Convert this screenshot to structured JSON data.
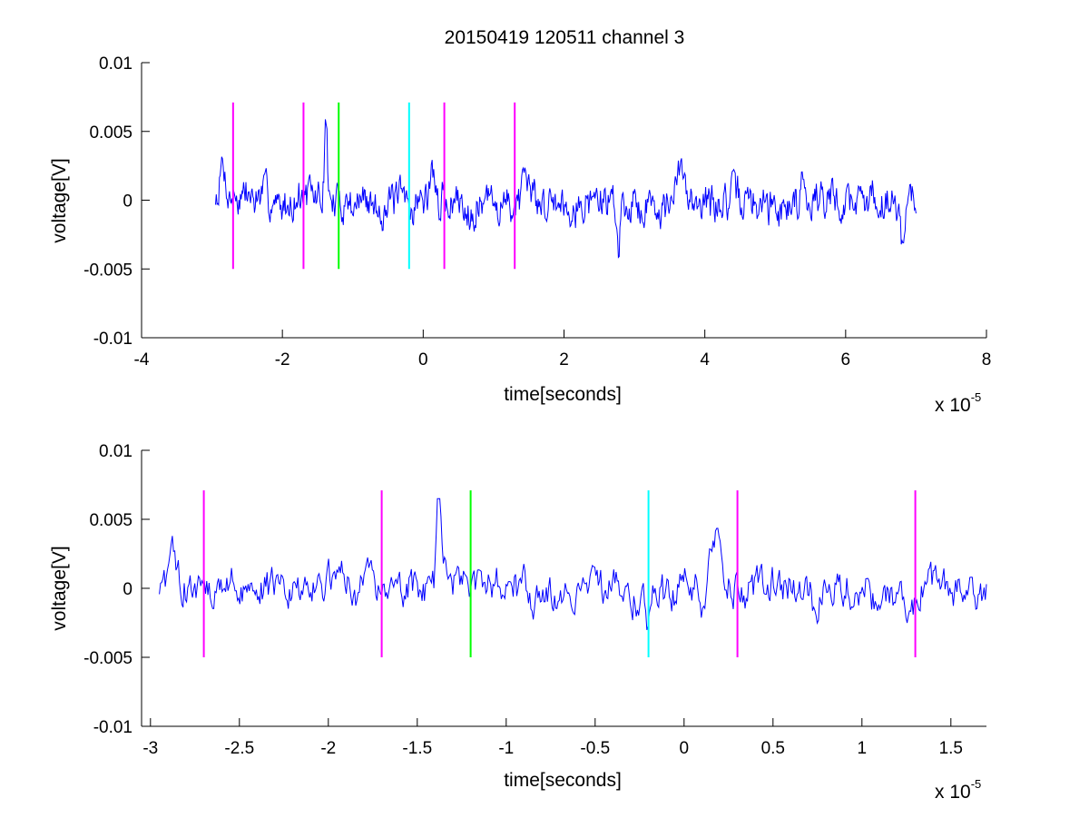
{
  "figure": {
    "title": "20150419 120511 channel 3"
  },
  "chart_data": [
    {
      "type": "line",
      "xlabel": "time[seconds]",
      "ylabel": "voltage[V]",
      "xlim": [
        -4,
        8
      ],
      "ylim": [
        -0.01,
        0.01
      ],
      "x_ticks": [
        -4,
        -2,
        0,
        2,
        4,
        6,
        8
      ],
      "x_tick_labels": [
        "-4",
        "-2",
        "0",
        "2",
        "4",
        "6",
        "8"
      ],
      "y_ticks": [
        0.01,
        0.005,
        0,
        -0.005,
        -0.01
      ],
      "y_tick_labels": [
        "0.01",
        "0.005",
        "0",
        "-0.005",
        "-0.01"
      ],
      "x_multiplier": {
        "base": "x 10",
        "exponent": "-5"
      },
      "grid": false,
      "series": [
        {
          "color": "#0000ff",
          "x_range": [
            -2.95,
            7.0
          ],
          "amplitude_range": [
            -0.0046,
            0.0065
          ]
        }
      ],
      "markers": [
        {
          "x": -2.7,
          "color": "#ff00ff",
          "y_range": [
            -0.005,
            0.0071
          ]
        },
        {
          "x": -1.7,
          "color": "#ff00ff",
          "y_range": [
            -0.005,
            0.0071
          ]
        },
        {
          "x": -1.2,
          "color": "#00ff00",
          "y_range": [
            -0.005,
            0.0071
          ]
        },
        {
          "x": -0.2,
          "color": "#00ffff",
          "y_range": [
            -0.005,
            0.0071
          ]
        },
        {
          "x": 0.3,
          "color": "#ff00ff",
          "y_range": [
            -0.005,
            0.0071
          ]
        },
        {
          "x": 1.3,
          "color": "#ff00ff",
          "y_range": [
            -0.005,
            0.0071
          ]
        }
      ]
    },
    {
      "type": "line",
      "xlabel": "time[seconds]",
      "ylabel": "voltage[V]",
      "xlim": [
        -3.05,
        1.7
      ],
      "ylim": [
        -0.01,
        0.01
      ],
      "x_ticks": [
        -3,
        -2.5,
        -2,
        -1.5,
        -1,
        -0.5,
        0,
        0.5,
        1,
        1.5
      ],
      "x_tick_labels": [
        "-3",
        "-2.5",
        "-2",
        "-1.5",
        "-1",
        "-0.5",
        "0",
        "0.5",
        "1",
        "1.5"
      ],
      "y_ticks": [
        0.01,
        0.005,
        0,
        -0.005,
        -0.01
      ],
      "y_tick_labels": [
        "0.01",
        "0.005",
        "0",
        "-0.005",
        "-0.01"
      ],
      "x_multiplier": {
        "base": "x 10",
        "exponent": "-5"
      },
      "grid": false,
      "series": [
        {
          "color": "#0000ff",
          "x_range": [
            -2.95,
            1.7
          ],
          "amplitude_range": [
            -0.0035,
            0.0065
          ]
        }
      ],
      "markers": [
        {
          "x": -2.7,
          "color": "#ff00ff",
          "y_range": [
            -0.005,
            0.0071
          ]
        },
        {
          "x": -1.7,
          "color": "#ff00ff",
          "y_range": [
            -0.005,
            0.0071
          ]
        },
        {
          "x": -1.2,
          "color": "#00ff00",
          "y_range": [
            -0.005,
            0.0071
          ]
        },
        {
          "x": -0.2,
          "color": "#00ffff",
          "y_range": [
            -0.005,
            0.0071
          ]
        },
        {
          "x": 0.3,
          "color": "#ff00ff",
          "y_range": [
            -0.005,
            0.0071
          ]
        },
        {
          "x": 1.3,
          "color": "#ff00ff",
          "y_range": [
            -0.005,
            0.0071
          ]
        }
      ]
    }
  ]
}
